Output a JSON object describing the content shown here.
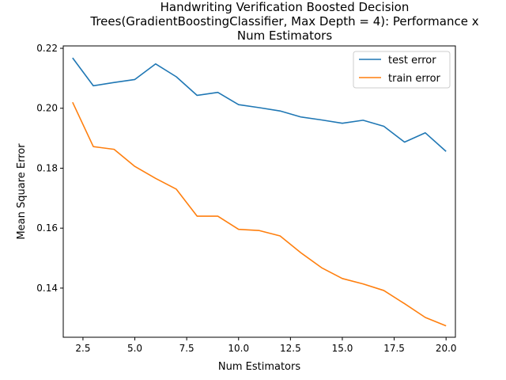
{
  "chart_data": {
    "type": "line",
    "title": "Handwriting Verification Boosted Decision Trees(GradientBoostingClassifier, Max Depth = 4): Performance x Num Estimators",
    "title_lines": [
      "Handwriting Verification Boosted Decision",
      "Trees(GradientBoostingClassifier, Max Depth = 4): Performance x",
      "Num Estimators"
    ],
    "xlabel": "Num Estimators",
    "ylabel": "Mean Square Error",
    "xlim": [
      1.55,
      20.45
    ],
    "ylim": [
      0.1236,
      0.2208
    ],
    "xticks": [
      2.5,
      5.0,
      7.5,
      10.0,
      12.5,
      15.0,
      17.5,
      20.0
    ],
    "xtick_labels": [
      "2.5",
      "5.0",
      "7.5",
      "10.0",
      "12.5",
      "15.0",
      "17.5",
      "20.0"
    ],
    "yticks": [
      0.14,
      0.16,
      0.18,
      0.2,
      0.22
    ],
    "ytick_labels": [
      "0.14",
      "0.16",
      "0.18",
      "0.20",
      "0.22"
    ],
    "grid": false,
    "legend_position": "top-right",
    "x": [
      2,
      3,
      4,
      5,
      6,
      7,
      8,
      9,
      10,
      11,
      12,
      13,
      14,
      15,
      16,
      17,
      18,
      19,
      20
    ],
    "series": [
      {
        "name": "test error",
        "color": "#1f77b4",
        "values": [
          0.2168,
          0.2075,
          0.2086,
          0.2096,
          0.2148,
          0.2105,
          0.2043,
          0.2053,
          0.2012,
          0.2002,
          0.1991,
          0.1971,
          0.1961,
          0.195,
          0.196,
          0.194,
          0.1887,
          0.1918,
          0.1856
        ]
      },
      {
        "name": "train error",
        "color": "#ff7f0e",
        "values": [
          0.202,
          0.1872,
          0.1863,
          0.1806,
          0.1766,
          0.173,
          0.164,
          0.164,
          0.1596,
          0.1592,
          0.1574,
          0.1518,
          0.1468,
          0.1432,
          0.1414,
          0.1392,
          0.1348,
          0.1302,
          0.1274
        ]
      }
    ]
  }
}
